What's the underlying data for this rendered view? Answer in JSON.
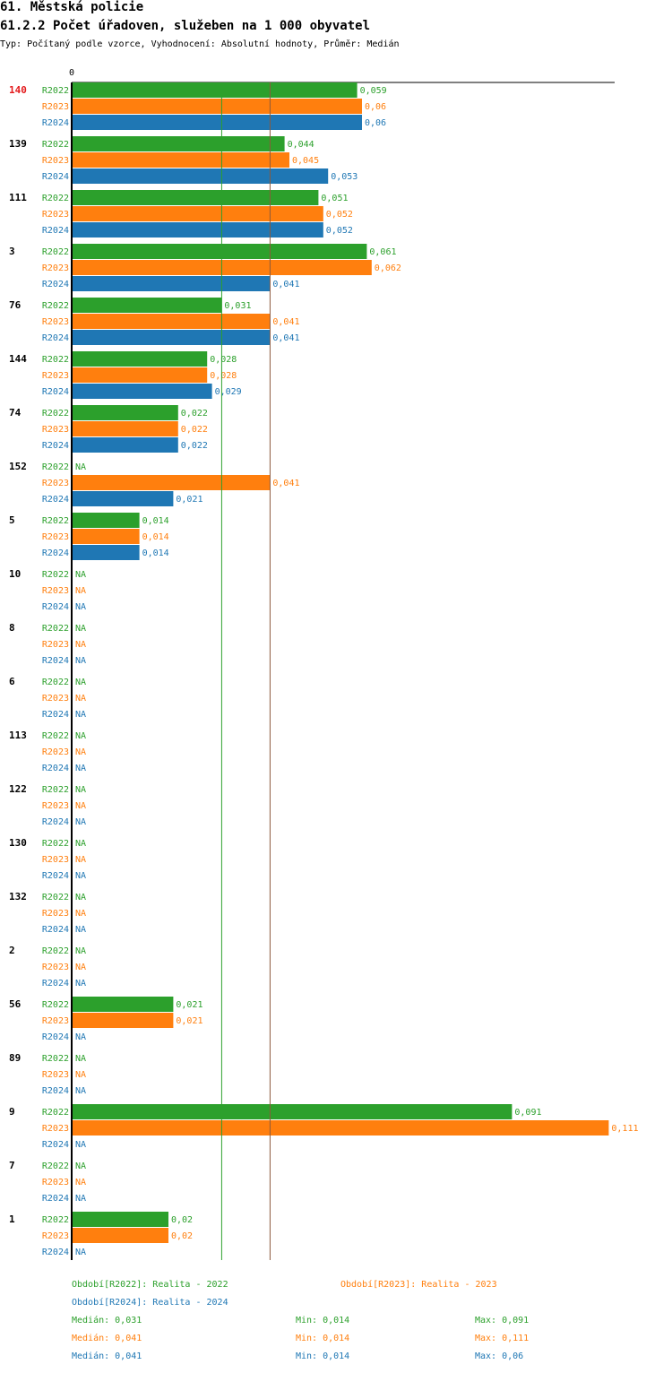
{
  "header": {
    "title": "61. Městská policie",
    "subtitle": "61.2.2 Počet úřadoven, služeben na 1 000 obyvatel",
    "type_line": "Typ: Počítaný podle vzorce, Vyhodnocení: Absolutní hodnoty, Průměr: Medián"
  },
  "chart_data": {
    "type": "bar",
    "orientation": "horizontal",
    "axis_zero_label": "0",
    "xlim": [
      0,
      0.111
    ],
    "na_label": "NA",
    "highlight_category": "140",
    "categories": [
      "140",
      "139",
      "111",
      "3",
      "76",
      "144",
      "74",
      "152",
      "5",
      "10",
      "8",
      "6",
      "113",
      "122",
      "130",
      "132",
      "2",
      "56",
      "89",
      "9",
      "7",
      "1"
    ],
    "series": [
      {
        "name": "R2022",
        "color": "#2ca02c",
        "values": [
          0.059,
          0.044,
          0.051,
          0.061,
          0.031,
          0.028,
          0.022,
          null,
          0.014,
          null,
          null,
          null,
          null,
          null,
          null,
          null,
          null,
          0.021,
          null,
          0.091,
          null,
          0.02
        ],
        "labels": [
          "0,059",
          "0,044",
          "0,051",
          "0,061",
          "0,031",
          "0,028",
          "0,022",
          "NA",
          "0,014",
          "NA",
          "NA",
          "NA",
          "NA",
          "NA",
          "NA",
          "NA",
          "NA",
          "0,021",
          "NA",
          "0,091",
          "NA",
          "0,02"
        ]
      },
      {
        "name": "R2023",
        "color": "#ff7f0e",
        "values": [
          0.06,
          0.045,
          0.052,
          0.062,
          0.041,
          0.028,
          0.022,
          0.041,
          0.014,
          null,
          null,
          null,
          null,
          null,
          null,
          null,
          null,
          0.021,
          null,
          0.111,
          null,
          0.02
        ],
        "labels": [
          "0,06",
          "0,045",
          "0,052",
          "0,062",
          "0,041",
          "0,028",
          "0,022",
          "0,041",
          "0,014",
          "NA",
          "NA",
          "NA",
          "NA",
          "NA",
          "NA",
          "NA",
          "NA",
          "0,021",
          "NA",
          "0,111",
          "NA",
          "0,02"
        ]
      },
      {
        "name": "R2024",
        "color": "#1f77b4",
        "values": [
          0.06,
          0.053,
          0.052,
          0.041,
          0.041,
          0.029,
          0.022,
          0.021,
          0.014,
          null,
          null,
          null,
          null,
          null,
          null,
          null,
          null,
          null,
          null,
          null,
          null,
          null
        ],
        "labels": [
          "0,06",
          "0,053",
          "0,052",
          "0,041",
          "0,041",
          "0,029",
          "0,022",
          "0,021",
          "0,014",
          "NA",
          "NA",
          "NA",
          "NA",
          "NA",
          "NA",
          "NA",
          "NA",
          "NA",
          "NA",
          "NA",
          "NA",
          "NA"
        ]
      }
    ],
    "median_lines": [
      {
        "value": 0.031,
        "color": "#2ca02c"
      },
      {
        "value": 0.041,
        "color": "#8c5a3c"
      }
    ]
  },
  "legend": {
    "series": [
      {
        "text": "Období[R2022]: Realita - 2022",
        "color": "#2ca02c"
      },
      {
        "text": "Období[R2023]: Realita - 2023",
        "color": "#ff7f0e"
      },
      {
        "text": "Období[R2024]: Realita - 2024",
        "color": "#1f77b4"
      }
    ],
    "stats": [
      {
        "median": "Medián: 0,031",
        "min": "Min: 0,014",
        "max": "Max: 0,091",
        "color": "#2ca02c"
      },
      {
        "median": "Medián: 0,041",
        "min": "Min: 0,014",
        "max": "Max: 0,111",
        "color": "#ff7f0e"
      },
      {
        "median": "Medián: 0,041",
        "min": "Min: 0,014",
        "max": "Max: 0,06",
        "color": "#1f77b4"
      }
    ]
  }
}
